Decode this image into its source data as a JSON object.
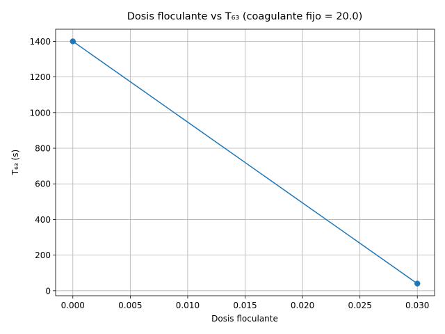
{
  "chart_data": {
    "type": "line",
    "title": "Dosis floculante vs T₆₃ (coagulante fijo = 20.0)",
    "xlabel": "Dosis floculante",
    "ylabel": "T₆₃ (s)",
    "x": [
      0.0,
      0.03
    ],
    "series": [
      {
        "values": [
          1400,
          40
        ],
        "color": "#1f77b4",
        "marker": "circle"
      }
    ],
    "xlim": [
      -0.0015,
      0.0315
    ],
    "ylim": [
      -28,
      1468
    ],
    "xticks": [
      0.0,
      0.005,
      0.01,
      0.015,
      0.02,
      0.025,
      0.03
    ],
    "xtick_labels": [
      "0.000",
      "0.005",
      "0.010",
      "0.015",
      "0.020",
      "0.025",
      "0.030"
    ],
    "yticks": [
      0,
      200,
      400,
      600,
      800,
      1000,
      1200,
      1400
    ],
    "ytick_labels": [
      "0",
      "200",
      "400",
      "600",
      "800",
      "1000",
      "1200",
      "1400"
    ],
    "grid": true
  }
}
